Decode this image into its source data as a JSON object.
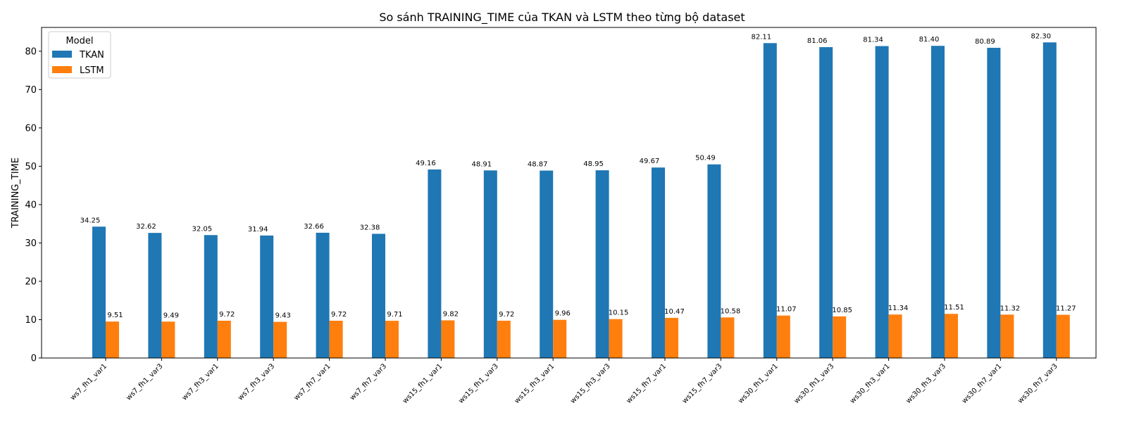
{
  "chart_data": {
    "type": "bar",
    "title": "So sánh TRAINING_TIME của TKAN và LSTM theo từng bộ dataset",
    "xlabel": "",
    "ylabel": "TRAINING_TIME",
    "ylim": [
      0,
      86.2
    ],
    "yticks": [
      0,
      10,
      20,
      30,
      40,
      50,
      60,
      70,
      80
    ],
    "grid": false,
    "legend": {
      "title": "Model",
      "placement": "top-left"
    },
    "categories": [
      "ws7_fh1_var1",
      "ws7_fh1_var3",
      "ws7_fh3_var1",
      "ws7_fh3_var3",
      "ws7_fh7_var1",
      "ws7_fh7_var3",
      "ws15_fh1_var1",
      "ws15_fh1_var3",
      "ws15_fh3_var1",
      "ws15_fh3_var3",
      "ws15_fh7_var1",
      "ws15_fh7_var3",
      "ws30_fh1_var1",
      "ws30_fh1_var3",
      "ws30_fh3_var1",
      "ws30_fh3_var3",
      "ws30_fh7_var1",
      "ws30_fh7_var3"
    ],
    "series": [
      {
        "name": "TKAN",
        "color": "#1f77b4",
        "values": [
          34.25,
          32.62,
          32.05,
          31.94,
          32.66,
          32.38,
          49.16,
          48.91,
          48.87,
          48.95,
          49.67,
          50.49,
          82.11,
          81.06,
          81.34,
          81.4,
          80.89,
          82.3
        ]
      },
      {
        "name": "LSTM",
        "color": "#ff7f0e",
        "values": [
          9.51,
          9.49,
          9.72,
          9.43,
          9.72,
          9.71,
          9.82,
          9.72,
          9.96,
          10.15,
          10.47,
          10.58,
          11.07,
          10.85,
          11.34,
          11.51,
          11.32,
          11.27
        ]
      }
    ]
  }
}
